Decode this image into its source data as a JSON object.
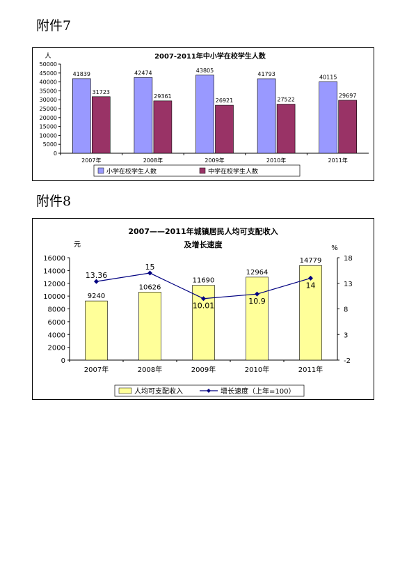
{
  "page": {
    "attachment_7": "附件7",
    "attachment_8": "附件8"
  },
  "colors": {
    "primary_bar": "#9999ff",
    "middle_bar": "#993366",
    "income_bar": "#ffff99",
    "growth_line": "#000080"
  },
  "chart_data": [
    {
      "type": "bar",
      "title": "2007-2011年中小学在校学生人数",
      "ylabel": "人",
      "categories": [
        "2007年",
        "2008年",
        "2009年",
        "2010年",
        "2011年"
      ],
      "series": [
        {
          "name": "小学在校学生人数",
          "values": [
            41839,
            42474,
            43805,
            41793,
            40115
          ]
        },
        {
          "name": "中学在校学生人数",
          "values": [
            31723,
            29361,
            26921,
            27522,
            29697
          ]
        }
      ],
      "ylim": [
        0,
        50000
      ],
      "yticks": [
        0,
        5000,
        10000,
        15000,
        20000,
        25000,
        30000,
        35000,
        40000,
        45000,
        50000
      ],
      "grid": false,
      "legend_position": "bottom"
    },
    {
      "type": "bar",
      "title": "2007——2011年城镇居民人均可支配收入",
      "subtitle": "及增长速度",
      "ylabel": "元",
      "y2label": "%",
      "categories": [
        "2007年",
        "2008年",
        "2009年",
        "2010年",
        "2011年"
      ],
      "series": [
        {
          "name": "人均可支配收入",
          "values": [
            9240,
            10626,
            11690,
            12964,
            14779
          ],
          "axis": "left"
        },
        {
          "name": "增长速度（上年=100）",
          "values": [
            13.36,
            15,
            10.01,
            10.9,
            14
          ],
          "axis": "right",
          "type": "line"
        }
      ],
      "ylim": [
        0,
        16000
      ],
      "yticks": [
        0,
        2000,
        4000,
        6000,
        8000,
        10000,
        12000,
        14000,
        16000
      ],
      "y2lim": [
        -2,
        18
      ],
      "y2ticks": [
        -2,
        3,
        8,
        13,
        18
      ],
      "grid": false,
      "legend_position": "bottom"
    }
  ]
}
